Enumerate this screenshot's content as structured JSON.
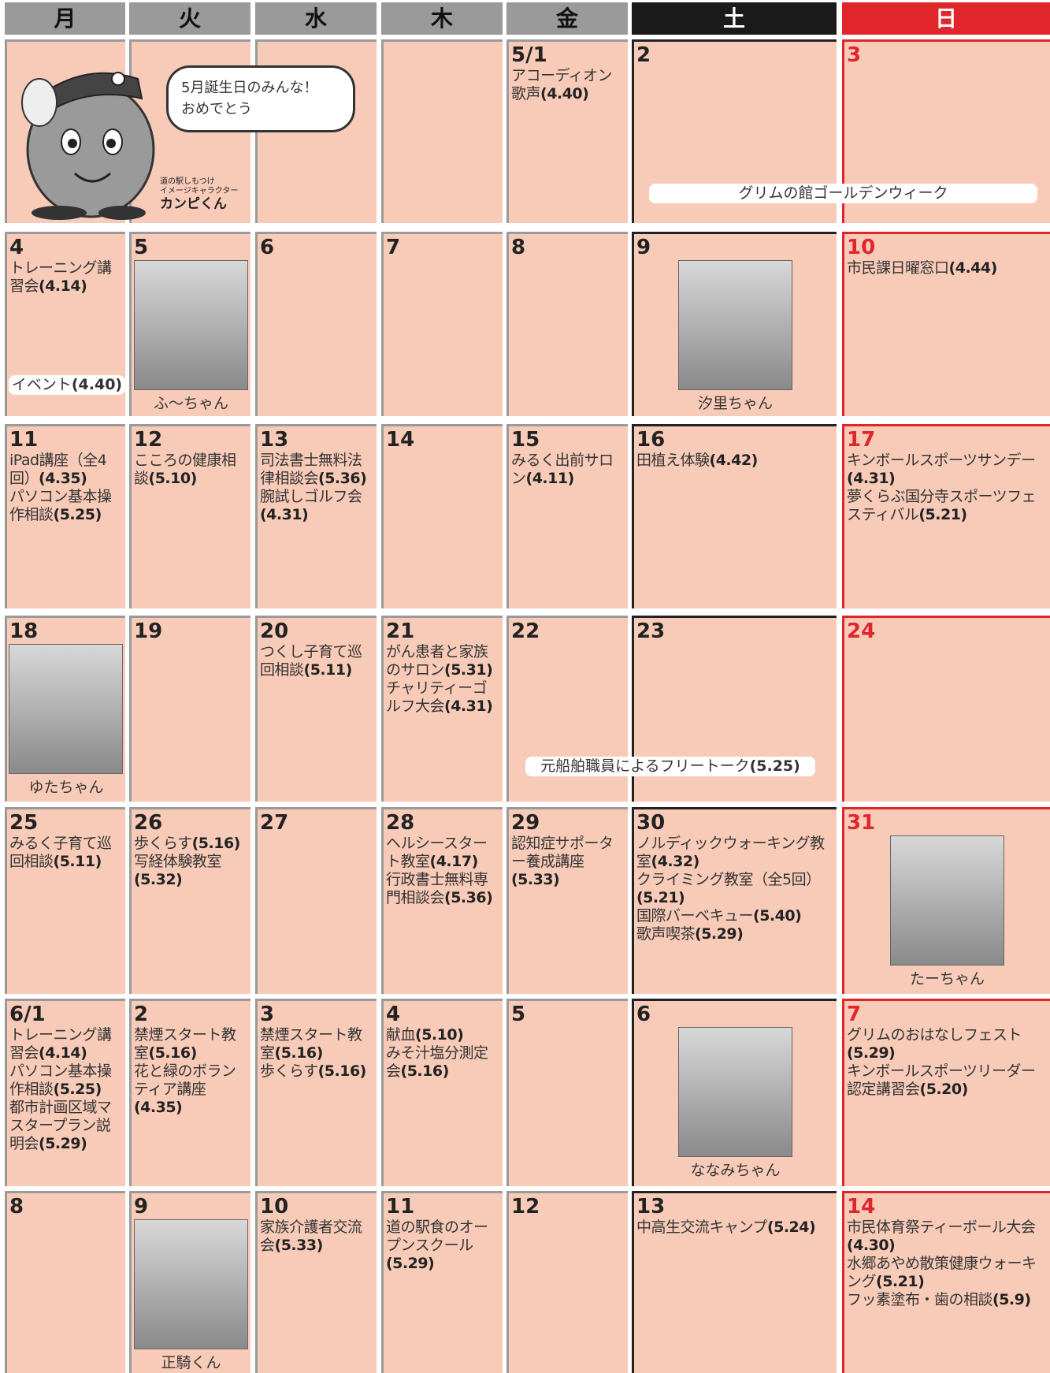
{
  "header": {
    "days": [
      "月",
      "火",
      "水",
      "木",
      "金",
      "土",
      "日"
    ]
  },
  "weeks": [
    {
      "days": [
        {
          "date": null
        },
        {
          "date": null
        },
        {
          "date": null
        },
        {
          "date": null
        },
        {
          "date": "5/1",
          "events": [
            {
              "text": "アコーディオン歌声",
              "ref": "(4.40)"
            }
          ]
        },
        {
          "date": "2"
        },
        {
          "date": "3"
        }
      ]
    },
    {
      "days": [
        {
          "date": "4",
          "events": [
            {
              "text": "トレーニング講習会",
              "ref": "(4.14)"
            }
          ]
        },
        {
          "date": "5",
          "photo_caption": "ふ～ちゃん"
        },
        {
          "date": "6"
        },
        {
          "date": "7"
        },
        {
          "date": "8"
        },
        {
          "date": "9",
          "photo_caption": "汐里ちゃん"
        },
        {
          "date": "10",
          "events": [
            {
              "text": "市民課日曜窓口",
              "ref": "(4.44)"
            }
          ]
        }
      ]
    },
    {
      "days": [
        {
          "date": "11",
          "events": [
            {
              "text": "iPad講座（全4回）",
              "ref": "(4.35)"
            },
            {
              "text": "パソコン基本操作相談",
              "ref": "(5.25)"
            }
          ]
        },
        {
          "date": "12",
          "events": [
            {
              "text": "こころの健康相談",
              "ref": "(5.10)"
            }
          ]
        },
        {
          "date": "13",
          "events": [
            {
              "text": "司法書士無料法律相談会",
              "ref": "(5.36)"
            },
            {
              "text": "腕試しゴルフ会",
              "ref": "(4.31)"
            }
          ]
        },
        {
          "date": "14"
        },
        {
          "date": "15",
          "events": [
            {
              "text": "みるく出前サロン",
              "ref": "(4.11)"
            }
          ]
        },
        {
          "date": "16",
          "events": [
            {
              "text": "田植え体験",
              "ref": "(4.42)"
            }
          ]
        },
        {
          "date": "17",
          "events": [
            {
              "text": "キンボールスポーツサンデー",
              "ref": "(4.31)"
            },
            {
              "text": "夢くらぶ国分寺スポーツフェスティバル",
              "ref": "(5.21)"
            }
          ]
        }
      ]
    },
    {
      "days": [
        {
          "date": "18",
          "photo_caption": "ゆたちゃん"
        },
        {
          "date": "19"
        },
        {
          "date": "20",
          "events": [
            {
              "text": "つくし子育て巡回相談",
              "ref": "(5.11)"
            }
          ]
        },
        {
          "date": "21",
          "events": [
            {
              "text": "がん患者と家族のサロン",
              "ref": "(5.31)"
            },
            {
              "text": "チャリティーゴルフ大会",
              "ref": "(4.31)"
            }
          ]
        },
        {
          "date": "22"
        },
        {
          "date": "23"
        },
        {
          "date": "24"
        }
      ]
    },
    {
      "days": [
        {
          "date": "25",
          "events": [
            {
              "text": "みるく子育て巡回相談",
              "ref": "(5.11)"
            }
          ]
        },
        {
          "date": "26",
          "events": [
            {
              "text": "歩くらす",
              "ref": "(5.16)"
            },
            {
              "text": "写経体験教室",
              "ref": "(5.32)"
            }
          ]
        },
        {
          "date": "27"
        },
        {
          "date": "28",
          "events": [
            {
              "text": "ヘルシースタート教室",
              "ref": "(4.17)"
            },
            {
              "text": "行政書士無料専門相談会",
              "ref": "(5.36)"
            }
          ]
        },
        {
          "date": "29",
          "events": [
            {
              "text": "認知症サポーター養成講座",
              "ref": "(5.33)"
            }
          ]
        },
        {
          "date": "30",
          "events": [
            {
              "text": "ノルディックウォーキング教室",
              "ref": "(4.32)"
            },
            {
              "text": "クライミング教室（全5回）",
              "ref": "(5.21)"
            },
            {
              "text": "国際バーベキュー",
              "ref": "(5.40)"
            },
            {
              "text": "歌声喫茶",
              "ref": "(5.29)"
            }
          ]
        },
        {
          "date": "31",
          "photo_caption": "たーちゃん"
        }
      ]
    },
    {
      "days": [
        {
          "date": "6/1",
          "events": [
            {
              "text": "トレーニング講習会",
              "ref": "(4.14)"
            },
            {
              "text": "パソコン基本操作相談",
              "ref": "(5.25)"
            },
            {
              "text": "都市計画区域マスタープラン説明会",
              "ref": "(5.29)"
            }
          ]
        },
        {
          "date": "2",
          "events": [
            {
              "text": "禁煙スタート教室",
              "ref": "(5.16)"
            },
            {
              "text": "花と緑のボランティア講座",
              "ref": "(4.35)"
            }
          ]
        },
        {
          "date": "3",
          "events": [
            {
              "text": "禁煙スタート教室",
              "ref": "(5.16)"
            },
            {
              "text": "歩くらす",
              "ref": "(5.16)"
            }
          ]
        },
        {
          "date": "4",
          "events": [
            {
              "text": "献血",
              "ref": "(5.10)"
            },
            {
              "text": "みそ汁塩分測定会",
              "ref": "(5.16)"
            }
          ]
        },
        {
          "date": "5"
        },
        {
          "date": "6",
          "photo_caption": "ななみちゃん"
        },
        {
          "date": "7",
          "events": [
            {
              "text": "グリムのおはなしフェスト",
              "ref": "(5.29)"
            },
            {
              "text": "キンボールスポーツリーダー認定講習会",
              "ref": "(5.20)"
            }
          ]
        }
      ]
    },
    {
      "days": [
        {
          "date": "8"
        },
        {
          "date": "9",
          "photo_caption": "正騎くん"
        },
        {
          "date": "10",
          "events": [
            {
              "text": "家族介護者交流会",
              "ref": "(5.33)"
            }
          ]
        },
        {
          "date": "11",
          "events": [
            {
              "text": "道の駅食のオープンスクール",
              "ref": "(5.29)"
            }
          ]
        },
        {
          "date": "12"
        },
        {
          "date": "13",
          "events": [
            {
              "text": "中高生交流キャンプ",
              "ref": "(5.24)"
            }
          ]
        },
        {
          "date": "14",
          "events": [
            {
              "text": "市民体育祭ティーボール大会",
              "ref": "(4.30)"
            },
            {
              "text": "水郷あやめ散策健康ウォーキング",
              "ref": "(5.21)"
            },
            {
              "text": "フッ素塗布・歯の相談",
              "ref": "(5.9)"
            }
          ]
        }
      ]
    }
  ],
  "banners": [
    {
      "text": "グリムの館ゴールデンウィーク"
    },
    {
      "text": "イベント",
      "ref": "(4.40)"
    },
    {
      "text": "元船舶職員によるフリートーク",
      "ref": "(5.25)"
    }
  ],
  "bubble": {
    "lines": [
      "5月誕生日のみんな！",
      "おめでとう"
    ]
  },
  "mascot": {
    "org": "道の駅しもつけ",
    "role": "イメージキャラクター",
    "name": "カンピくん"
  }
}
